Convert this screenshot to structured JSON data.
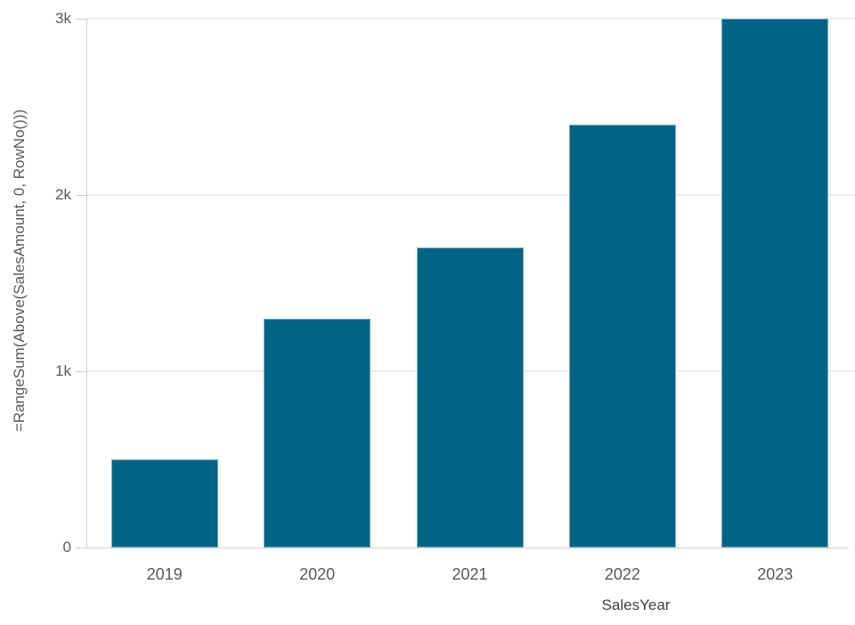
{
  "chart_data": {
    "type": "bar",
    "categories": [
      "2019",
      "2020",
      "2021",
      "2022",
      "2023"
    ],
    "values": [
      500,
      1300,
      1700,
      2400,
      3000
    ],
    "title": "",
    "xlabel": "SalesYear",
    "ylabel": "=RangeSum(Above(SalesAmount, 0, RowNo()))",
    "ylim": [
      0,
      3000
    ],
    "yticks": [
      {
        "value": 0,
        "label": "0"
      },
      {
        "value": 1000,
        "label": "1k"
      },
      {
        "value": 2000,
        "label": "2k"
      },
      {
        "value": 3000,
        "label": "3k"
      }
    ],
    "grid": true,
    "legend": false,
    "bar_color": "#006485"
  },
  "colors": {
    "bar": "#006485",
    "axis_line": "#d0d0d0",
    "gridline": "#ededed",
    "tick_text": "#595959",
    "axis_title_text": "#404040",
    "background": "#ffffff"
  }
}
